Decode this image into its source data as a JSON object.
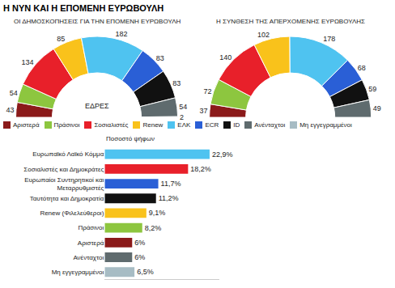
{
  "title": "Η ΝΥΝ ΚΑΙ Η ΕΠΟΜΕΝΗ ΕΥΡΩΒΟΥΛΗ",
  "chart_data": [
    {
      "type": "pie",
      "title": "ΟΙ ΔΗΜΟΣΚΟΠΗΣΕΙΣ ΓΙΑ ΤΗΝ ΕΠΟΜΕΝΗ ΕΥΡΩΒΟΥΛΗ",
      "annotations": [
        "ΕΔΡΕΣ"
      ],
      "categories": [
        "Αριστερά",
        "Πράσινοι",
        "Σοσιαλιστές",
        "Renew",
        "ΕΛΚ",
        "ECR",
        "ID",
        "Ανένταχτοι",
        "Μη εγγεγραμμένοι"
      ],
      "values": [
        43,
        54,
        134,
        85,
        182,
        83,
        83,
        54,
        2
      ],
      "colors": [
        "#8b1a1a",
        "#8dc63f",
        "#e8202a",
        "#f9c21b",
        "#4fc3f0",
        "#2a5fd6",
        "#111111",
        "#5f6b6e",
        "#a7bcc4"
      ],
      "data_labels": true,
      "legend": "bottom"
    },
    {
      "type": "pie",
      "title": "Η ΣΥΝΘΕΣΗ ΤΗΣ ΑΠΕΡΧΟΜΕΝΗΣ ΕΥΡΩΒΟΥΛΗΣ",
      "categories": [
        "Αριστερά",
        "Πράσινοι",
        "Σοσιαλιστές",
        "Renew",
        "ΕΛΚ",
        "ECR",
        "ID",
        "Ανένταχτοι"
      ],
      "values": [
        37,
        72,
        140,
        102,
        178,
        68,
        59,
        49
      ],
      "colors": [
        "#8b1a1a",
        "#8dc63f",
        "#e8202a",
        "#f9c21b",
        "#4fc3f0",
        "#2a5fd6",
        "#111111",
        "#5f6b6e"
      ],
      "data_labels": true
    },
    {
      "type": "bar",
      "title": "Ποσοστό ψήφων",
      "orientation": "horizontal",
      "categories": [
        "Ευρωπαϊκό Λαϊκό Κόμμα",
        "Σοσιαλιστές και Δημοκράτες",
        "Ευρωπαίοι Συντηρητικοί και Μεταρρυθμιστές",
        "Ταυτότητα και Δημοκρατία",
        "Renew (Φιλελεύθεροι)",
        "Πράσινοι",
        "Αριστερά",
        "Ανένταχτοι",
        "Μη εγγεγραμμένοι"
      ],
      "values": [
        22.9,
        18.2,
        11.7,
        11.2,
        9.1,
        8.2,
        6,
        6,
        6.5
      ],
      "value_labels": [
        "22,9%",
        "18,2%",
        "11,7%",
        "11,2%",
        "9,1%",
        "8,2%",
        "6%",
        "6%",
        "6,5%"
      ],
      "colors": [
        "#4fc3f0",
        "#e8202a",
        "#2a5fd6",
        "#111111",
        "#f9c21b",
        "#8dc63f",
        "#8b1a1a",
        "#5f6b6e",
        "#a7bcc4"
      ],
      "xlim": [
        0,
        25
      ],
      "data_labels": true,
      "tick_labels": "y"
    }
  ]
}
